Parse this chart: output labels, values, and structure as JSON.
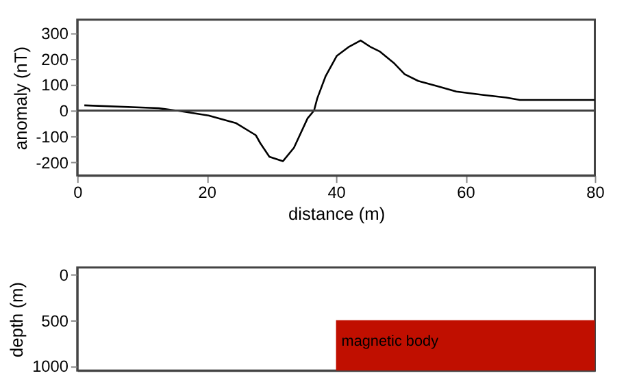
{
  "chart_data": [
    {
      "type": "line",
      "xlabel": "distance (m)",
      "ylabel": "anomaly (nT)",
      "color": "#000000",
      "x": [
        1.1,
        12.6,
        15.4,
        20.3,
        24.5,
        27.6,
        28.3,
        29.7,
        31.8,
        33.5,
        35.6,
        36.6,
        37.1,
        38.4,
        40.1,
        41.9,
        43.8,
        45.4,
        46.8,
        48.9,
        50.6,
        52.7,
        55.8,
        58.6,
        62.8,
        66.3,
        68.4,
        80
      ],
      "values": [
        20,
        9,
        0,
        -19,
        -48,
        -95,
        -126,
        -178,
        -195,
        -143,
        -30,
        0,
        47,
        133,
        210,
        244,
        270,
        244,
        227,
        184,
        140,
        114,
        93,
        73,
        60,
        50,
        41,
        41
      ],
      "xlim": [
        0,
        80
      ],
      "xticks": [
        0,
        20,
        40,
        60,
        80
      ],
      "ylim": [
        -250,
        350
      ],
      "yticks": [
        -200,
        -100,
        0,
        100,
        200,
        300
      ],
      "ref_lines": [
        {
          "axis": "y",
          "value": 0,
          "color": "#404040"
        }
      ],
      "grid": false,
      "line_style": "solid",
      "marker": "none"
    },
    {
      "type": "bar",
      "ylabel": "depth (m)",
      "x": [
        60
      ],
      "base": [
        500
      ],
      "values": [
        550
      ],
      "colors": [
        "#c00f00"
      ],
      "xlim": [
        0,
        80
      ],
      "ylim": [
        1050,
        -75
      ],
      "yticks": [
        0,
        500,
        1000
      ],
      "tick_labels": "y",
      "grid": false,
      "annotations": [
        "magnetic body"
      ]
    }
  ]
}
